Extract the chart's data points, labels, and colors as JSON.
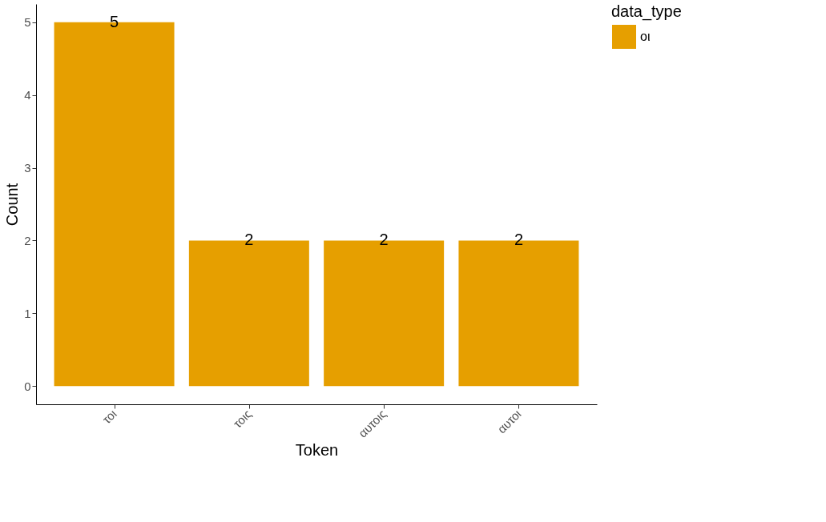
{
  "chart_data": {
    "type": "bar",
    "xlabel": "Token",
    "ylabel": "Count",
    "legend_title": "data_type",
    "categories": [
      "τοι",
      "τοις",
      "αυτοις",
      "αυτοι"
    ],
    "series": [
      {
        "name": "οι",
        "color": "#e69f00",
        "values": [
          5,
          2,
          2,
          2
        ]
      }
    ],
    "ylim": [
      -0.25,
      5.25
    ],
    "yticks": [
      0,
      1,
      2,
      3,
      4,
      5
    ],
    "grid": false,
    "legend": "right",
    "data_labels": true
  }
}
